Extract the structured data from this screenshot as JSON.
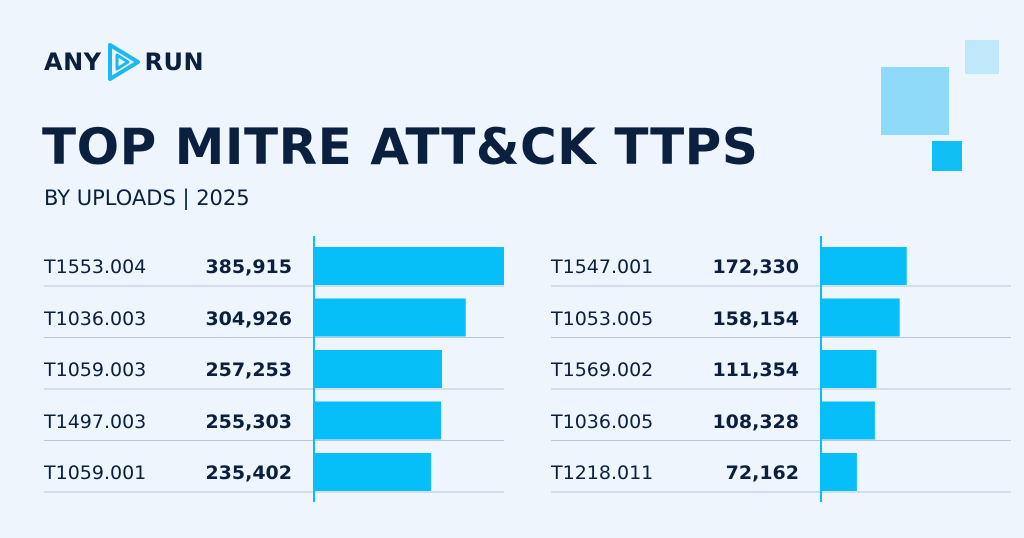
{
  "brand": {
    "left": "ANY",
    "right": "RUN"
  },
  "title": "TOP MITRE ATT&CK TTPS",
  "subtitle": "BY UPLOADS | 2025",
  "colors": {
    "bar": "#07bff8",
    "text": "#0b1f3f",
    "background": "#eef5fd",
    "axis": "#07bff8",
    "rule": "#b9c8d9"
  },
  "chart_data": [
    {
      "type": "bar",
      "orientation": "horizontal",
      "title": "",
      "categories": [
        "T1553.004",
        "T1036.003",
        "T1059.003",
        "T1497.003",
        "T1059.001"
      ],
      "values": [
        385915,
        304926,
        257253,
        255303,
        235402
      ],
      "value_labels": [
        "385,915",
        "304,926",
        "257,253",
        "255,303",
        "235,402"
      ],
      "xlim": [
        0,
        385915
      ]
    },
    {
      "type": "bar",
      "orientation": "horizontal",
      "title": "",
      "categories": [
        "T1547.001",
        "T1053.005",
        "T1569.002",
        "T1036.005",
        "T1218.011"
      ],
      "values": [
        172330,
        158154,
        111354,
        108328,
        72162
      ],
      "value_labels": [
        "172,330",
        "158,154",
        "111,354",
        "108,328",
        "72,162"
      ],
      "xlim": [
        0,
        385915
      ]
    }
  ]
}
